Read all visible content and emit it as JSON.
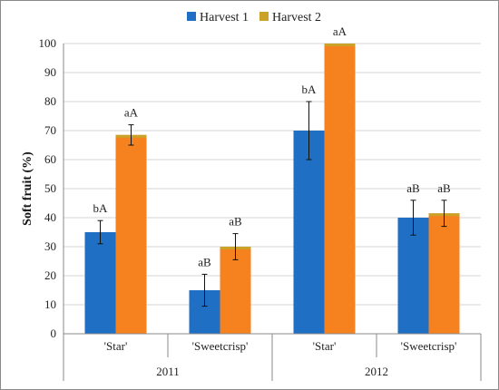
{
  "chart_data": {
    "type": "bar",
    "title": "",
    "ylabel": "Soft fruit (%)",
    "xlabel": "",
    "ylim": [
      0,
      100
    ],
    "yticks": [
      0,
      10,
      20,
      30,
      40,
      50,
      60,
      70,
      80,
      90,
      100
    ],
    "grid": true,
    "legend_position": "top-center",
    "groups": [
      "2011",
      "2012"
    ],
    "categories": [
      "'Star'",
      "'Sweetcrisp'",
      "'Star'",
      "'Sweetcrisp'"
    ],
    "series": [
      {
        "name": "Harvest 1",
        "color": "#1f6fc5",
        "values": [
          35,
          15,
          70,
          40
        ],
        "errors": [
          4,
          5.5,
          10,
          6
        ],
        "labels": [
          "bA",
          "aB",
          "bA",
          "aB"
        ]
      },
      {
        "name": "Harvest 2",
        "color": "#f5821f",
        "legend_color": "#c9a227",
        "values": [
          68.5,
          30,
          100,
          41.5
        ],
        "errors": [
          3.5,
          4.5,
          0,
          4.5
        ],
        "labels": [
          "aA",
          "aB",
          "aA",
          "aB"
        ]
      }
    ]
  }
}
